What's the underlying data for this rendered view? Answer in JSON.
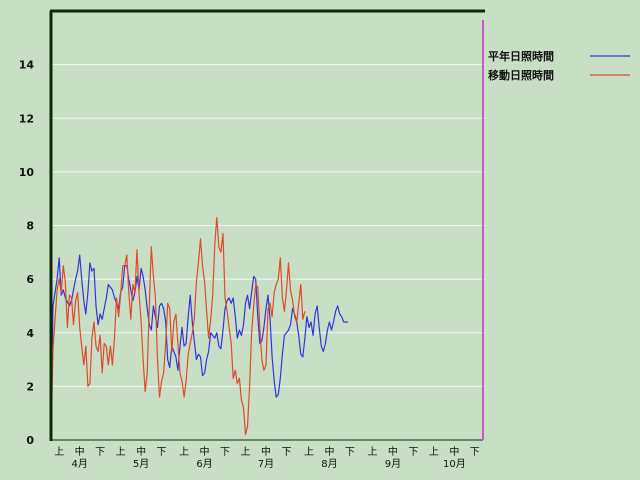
{
  "chart_data": {
    "type": "line",
    "title": "",
    "xlabel": "",
    "ylabel": "",
    "ylim": [
      0,
      16
    ],
    "y_ticks": [
      0,
      2,
      4,
      6,
      8,
      10,
      12,
      14
    ],
    "grid": "horizontal",
    "legend_position": "top-right",
    "x_tick_labels": [
      {
        "label": "上",
        "day": 4
      },
      {
        "label": "中",
        "day": 14
      },
      {
        "label": "下",
        "day": 24
      },
      {
        "label": "上",
        "day": 34
      },
      {
        "label": "中",
        "day": 44
      },
      {
        "label": "下",
        "day": 54
      },
      {
        "label": "上",
        "day": 65
      },
      {
        "label": "中",
        "day": 75
      },
      {
        "label": "下",
        "day": 85
      },
      {
        "label": "上",
        "day": 95
      },
      {
        "label": "中",
        "day": 105
      },
      {
        "label": "下",
        "day": 115
      },
      {
        "label": "上",
        "day": 126
      },
      {
        "label": "中",
        "day": 136
      },
      {
        "label": "下",
        "day": 146
      },
      {
        "label": "上",
        "day": 157
      },
      {
        "label": "中",
        "day": 167
      },
      {
        "label": "下",
        "day": 177
      },
      {
        "label": "上",
        "day": 187
      },
      {
        "label": "中",
        "day": 197
      },
      {
        "label": "下",
        "day": 207
      }
    ],
    "month_labels": [
      {
        "label": "4月",
        "day": 14
      },
      {
        "label": "5月",
        "day": 44
      },
      {
        "label": "6月",
        "day": 75
      },
      {
        "label": "7月",
        "day": 105
      },
      {
        "label": "8月",
        "day": 136
      },
      {
        "label": "9月",
        "day": 167
      },
      {
        "label": "10月",
        "day": 197
      }
    ],
    "marker_line_day": 211,
    "series": [
      {
        "name": "平年日照時間",
        "color": "#3333dd",
        "points": [
          [
            0,
            0
          ],
          [
            1,
            5.0
          ],
          [
            3,
            6.0
          ],
          [
            4,
            6.8
          ],
          [
            5,
            5.4
          ],
          [
            6,
            5.6
          ],
          [
            7,
            5.3
          ],
          [
            9,
            5.0
          ],
          [
            10,
            5.2
          ],
          [
            12,
            6.0
          ],
          [
            13,
            6.3
          ],
          [
            14,
            6.9
          ],
          [
            15,
            6.0
          ],
          [
            16,
            5.2
          ],
          [
            17,
            4.7
          ],
          [
            18,
            5.5
          ],
          [
            19,
            6.6
          ],
          [
            20,
            6.3
          ],
          [
            21,
            6.4
          ],
          [
            22,
            5.0
          ],
          [
            23,
            4.3
          ],
          [
            24,
            4.7
          ],
          [
            25,
            4.5
          ],
          [
            27,
            5.3
          ],
          [
            28,
            5.8
          ],
          [
            30,
            5.6
          ],
          [
            31,
            5.3
          ],
          [
            33,
            4.9
          ],
          [
            34,
            5.5
          ],
          [
            35,
            5.7
          ],
          [
            36,
            6.5
          ],
          [
            37,
            6.5
          ],
          [
            38,
            6.0
          ],
          [
            39,
            5.6
          ],
          [
            40,
            5.2
          ],
          [
            41,
            5.5
          ],
          [
            42,
            6.1
          ],
          [
            43,
            5.6
          ],
          [
            44,
            6.4
          ],
          [
            45,
            6.1
          ],
          [
            46,
            5.6
          ],
          [
            47,
            4.9
          ],
          [
            48,
            4.3
          ],
          [
            49,
            4.1
          ],
          [
            50,
            5.0
          ],
          [
            51,
            4.6
          ],
          [
            52,
            4.2
          ],
          [
            53,
            5.0
          ],
          [
            54,
            5.1
          ],
          [
            55,
            4.9
          ],
          [
            56,
            4.4
          ],
          [
            57,
            3.0
          ],
          [
            58,
            2.7
          ],
          [
            59,
            3.5
          ],
          [
            60,
            3.3
          ],
          [
            61,
            3.1
          ],
          [
            62,
            2.6
          ],
          [
            63,
            3.5
          ],
          [
            64,
            4.2
          ],
          [
            65,
            3.5
          ],
          [
            66,
            3.6
          ],
          [
            67,
            4.6
          ],
          [
            68,
            5.4
          ],
          [
            69,
            4.4
          ],
          [
            70,
            3.7
          ],
          [
            71,
            3.0
          ],
          [
            72,
            3.2
          ],
          [
            73,
            3.1
          ],
          [
            74,
            2.4
          ],
          [
            75,
            2.5
          ],
          [
            76,
            3.0
          ],
          [
            77,
            3.3
          ],
          [
            78,
            4.0
          ],
          [
            79,
            3.9
          ],
          [
            80,
            3.8
          ],
          [
            81,
            4.0
          ],
          [
            82,
            3.5
          ],
          [
            83,
            3.4
          ],
          [
            84,
            4.1
          ],
          [
            85,
            4.9
          ],
          [
            86,
            5.2
          ],
          [
            87,
            5.3
          ],
          [
            88,
            5.1
          ],
          [
            89,
            5.3
          ],
          [
            90,
            4.6
          ],
          [
            91,
            3.8
          ],
          [
            92,
            4.1
          ],
          [
            93,
            3.9
          ],
          [
            94,
            4.3
          ],
          [
            95,
            5.1
          ],
          [
            96,
            5.4
          ],
          [
            97,
            4.9
          ],
          [
            98,
            5.5
          ],
          [
            99,
            6.1
          ],
          [
            100,
            6.0
          ],
          [
            101,
            4.6
          ],
          [
            102,
            3.6
          ],
          [
            103,
            3.7
          ],
          [
            104,
            4.2
          ],
          [
            105,
            4.9
          ],
          [
            106,
            5.4
          ],
          [
            107,
            4.5
          ],
          [
            108,
            3.1
          ],
          [
            109,
            2.2
          ],
          [
            110,
            1.6
          ],
          [
            111,
            1.7
          ],
          [
            112,
            2.3
          ],
          [
            113,
            3.2
          ],
          [
            114,
            3.9
          ],
          [
            115,
            4.0
          ],
          [
            116,
            4.1
          ],
          [
            117,
            4.3
          ],
          [
            118,
            4.9
          ],
          [
            119,
            4.7
          ],
          [
            120,
            4.4
          ],
          [
            121,
            3.9
          ],
          [
            122,
            3.2
          ],
          [
            123,
            3.1
          ],
          [
            124,
            3.8
          ],
          [
            125,
            4.6
          ],
          [
            126,
            4.2
          ],
          [
            127,
            4.4
          ],
          [
            128,
            3.9
          ],
          [
            129,
            4.7
          ],
          [
            130,
            5.0
          ],
          [
            131,
            4.2
          ],
          [
            132,
            3.5
          ],
          [
            133,
            3.3
          ],
          [
            134,
            3.6
          ],
          [
            135,
            4.1
          ],
          [
            136,
            4.4
          ],
          [
            137,
            4.1
          ],
          [
            138,
            4.4
          ],
          [
            139,
            4.8
          ],
          [
            140,
            5.0
          ],
          [
            141,
            4.7
          ],
          [
            142,
            4.6
          ],
          [
            143,
            4.4
          ],
          [
            144,
            4.4
          ],
          [
            145,
            4.4
          ]
        ]
      },
      {
        "name": "移動日照時間",
        "color": "#e04a2a",
        "points": [
          [
            0,
            0
          ],
          [
            1,
            3.4
          ],
          [
            3,
            5.6
          ],
          [
            4,
            6.0
          ],
          [
            5,
            5.5
          ],
          [
            6,
            6.5
          ],
          [
            7,
            5.9
          ],
          [
            8,
            4.2
          ],
          [
            9,
            5.4
          ],
          [
            10,
            5.3
          ],
          [
            11,
            4.3
          ],
          [
            12,
            5.2
          ],
          [
            13,
            5.5
          ],
          [
            14,
            4.2
          ],
          [
            15,
            3.5
          ],
          [
            16,
            2.8
          ],
          [
            17,
            3.5
          ],
          [
            18,
            2.0
          ],
          [
            19,
            2.1
          ],
          [
            20,
            3.8
          ],
          [
            21,
            4.4
          ],
          [
            22,
            3.5
          ],
          [
            23,
            3.3
          ],
          [
            24,
            3.9
          ],
          [
            25,
            2.5
          ],
          [
            26,
            3.6
          ],
          [
            27,
            3.5
          ],
          [
            28,
            2.8
          ],
          [
            29,
            3.5
          ],
          [
            30,
            2.8
          ],
          [
            31,
            3.8
          ],
          [
            32,
            5.3
          ],
          [
            33,
            4.6
          ],
          [
            34,
            5.4
          ],
          [
            35,
            6.5
          ],
          [
            36,
            6.5
          ],
          [
            37,
            6.9
          ],
          [
            38,
            5.5
          ],
          [
            39,
            4.5
          ],
          [
            40,
            5.8
          ],
          [
            41,
            5.5
          ],
          [
            42,
            7.1
          ],
          [
            43,
            5.5
          ],
          [
            44,
            4.4
          ],
          [
            45,
            3.0
          ],
          [
            46,
            1.8
          ],
          [
            47,
            2.5
          ],
          [
            48,
            5.0
          ],
          [
            49,
            7.2
          ],
          [
            50,
            6.1
          ],
          [
            51,
            5.3
          ],
          [
            52,
            3.0
          ],
          [
            53,
            1.6
          ],
          [
            54,
            2.2
          ],
          [
            55,
            2.5
          ],
          [
            56,
            3.6
          ],
          [
            57,
            5.1
          ],
          [
            58,
            4.9
          ],
          [
            59,
            3.3
          ],
          [
            60,
            4.4
          ],
          [
            61,
            4.7
          ],
          [
            62,
            3.6
          ],
          [
            63,
            2.5
          ],
          [
            64,
            2.2
          ],
          [
            65,
            1.6
          ],
          [
            66,
            2.2
          ],
          [
            67,
            3.2
          ],
          [
            68,
            3.6
          ],
          [
            69,
            4.0
          ],
          [
            70,
            4.5
          ],
          [
            71,
            5.9
          ],
          [
            72,
            6.6
          ],
          [
            73,
            7.5
          ],
          [
            74,
            6.5
          ],
          [
            75,
            5.9
          ],
          [
            76,
            4.8
          ],
          [
            77,
            3.8
          ],
          [
            78,
            4.5
          ],
          [
            79,
            5.4
          ],
          [
            80,
            7.3
          ],
          [
            81,
            8.3
          ],
          [
            82,
            7.2
          ],
          [
            83,
            7.0
          ],
          [
            84,
            7.7
          ],
          [
            85,
            5.3
          ],
          [
            86,
            4.8
          ],
          [
            87,
            4.2
          ],
          [
            88,
            3.6
          ],
          [
            89,
            2.3
          ],
          [
            90,
            2.6
          ],
          [
            91,
            2.1
          ],
          [
            92,
            2.3
          ],
          [
            93,
            1.5
          ],
          [
            94,
            1.2
          ],
          [
            95,
            0.2
          ],
          [
            96,
            0.5
          ],
          [
            97,
            2.0
          ],
          [
            98,
            4.0
          ],
          [
            99,
            5.0
          ],
          [
            100,
            5.8
          ],
          [
            101,
            5.7
          ],
          [
            102,
            4.2
          ],
          [
            103,
            3.0
          ],
          [
            104,
            2.6
          ],
          [
            105,
            2.8
          ],
          [
            106,
            4.9
          ],
          [
            107,
            5.1
          ],
          [
            108,
            4.6
          ],
          [
            109,
            5.5
          ],
          [
            110,
            5.8
          ],
          [
            111,
            6.0
          ],
          [
            112,
            6.8
          ],
          [
            113,
            5.3
          ],
          [
            114,
            4.8
          ],
          [
            115,
            5.6
          ],
          [
            116,
            6.6
          ],
          [
            117,
            5.6
          ],
          [
            118,
            5.2
          ],
          [
            119,
            4.6
          ],
          [
            120,
            4.4
          ],
          [
            121,
            5.1
          ],
          [
            122,
            5.8
          ],
          [
            123,
            4.5
          ],
          [
            124,
            4.8
          ]
        ]
      }
    ]
  }
}
